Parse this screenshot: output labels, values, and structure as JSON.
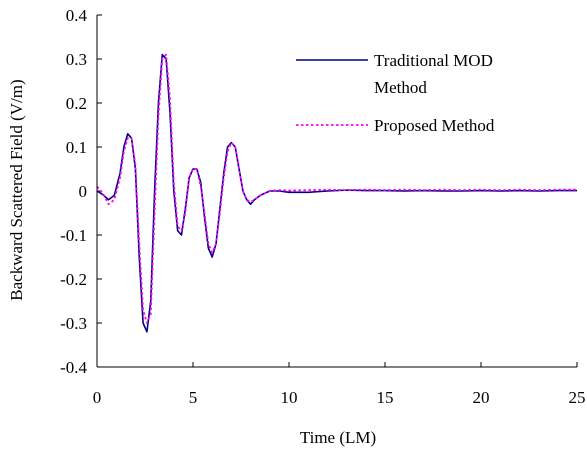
{
  "chart_data": {
    "type": "line",
    "title": "",
    "xlabel": "Time (LM)",
    "ylabel": "Backward Scattered Field (V/m)",
    "xlim": [
      0,
      25
    ],
    "ylim": [
      -0.4,
      0.4
    ],
    "x_ticks": [
      0,
      5,
      10,
      15,
      20,
      25
    ],
    "y_ticks": [
      0.4,
      0.3,
      0.2,
      0.1,
      0,
      -0.1,
      -0.2,
      -0.3,
      -0.4
    ],
    "x_tick_labels": [
      "0",
      "5",
      "10",
      "15",
      "20",
      "25"
    ],
    "y_tick_labels": [
      "0.4",
      "0.3",
      "0.2",
      "0.1",
      "0",
      "-0.1",
      "-0.2",
      "-0.3",
      "-0.4"
    ],
    "grid": false,
    "legend_position": "top-right",
    "legend_entries": [
      {
        "label_lines": [
          "Traditional MOD",
          "Method"
        ]
      },
      {
        "label_lines": [
          "Proposed Method"
        ]
      }
    ],
    "series": [
      {
        "name": "Traditional MOD Method",
        "color": "#000080",
        "style": "solid",
        "x": [
          0,
          0.3,
          0.6,
          0.9,
          1.2,
          1.4,
          1.6,
          1.8,
          2.0,
          2.2,
          2.4,
          2.6,
          2.8,
          3.0,
          3.2,
          3.4,
          3.6,
          3.8,
          4.0,
          4.2,
          4.4,
          4.6,
          4.8,
          5.0,
          5.2,
          5.4,
          5.6,
          5.8,
          6.0,
          6.2,
          6.4,
          6.6,
          6.8,
          7.0,
          7.2,
          7.4,
          7.6,
          7.8,
          8.0,
          8.2,
          8.5,
          9.0,
          9.5,
          10,
          11,
          12,
          13,
          14,
          15,
          16,
          17,
          18,
          19,
          20,
          21,
          22,
          23,
          24,
          25
        ],
        "y": [
          0.0,
          -0.008,
          -0.02,
          -0.01,
          0.04,
          0.1,
          0.13,
          0.12,
          0.05,
          -0.15,
          -0.3,
          -0.32,
          -0.25,
          0.0,
          0.2,
          0.31,
          0.3,
          0.18,
          0.0,
          -0.09,
          -0.1,
          -0.04,
          0.03,
          0.05,
          0.05,
          0.02,
          -0.06,
          -0.13,
          -0.15,
          -0.12,
          -0.04,
          0.04,
          0.1,
          0.11,
          0.1,
          0.05,
          0.0,
          -0.02,
          -0.03,
          -0.02,
          -0.01,
          0.0,
          0.0,
          -0.003,
          -0.003,
          0.0,
          0.002,
          0.001,
          0.001,
          0.0,
          0.001,
          0.0,
          0.0,
          0.001,
          0.0,
          0.001,
          0.0,
          0.001,
          0.001
        ]
      },
      {
        "name": "Proposed Method",
        "color": "#ff00ff",
        "style": "dotted",
        "x": [
          0,
          0.3,
          0.6,
          0.9,
          1.2,
          1.4,
          1.6,
          1.8,
          2.0,
          2.2,
          2.4,
          2.6,
          2.8,
          3.0,
          3.2,
          3.4,
          3.6,
          3.8,
          4.0,
          4.2,
          4.4,
          4.6,
          4.8,
          5.0,
          5.2,
          5.4,
          5.6,
          5.8,
          6.0,
          6.2,
          6.4,
          6.6,
          6.8,
          7.0,
          7.2,
          7.4,
          7.6,
          7.8,
          8.0,
          8.2,
          8.5,
          9.0,
          9.5,
          10,
          11,
          12,
          13,
          14,
          15,
          16,
          17,
          18,
          19,
          20,
          21,
          22,
          23,
          24,
          25
        ],
        "y": [
          0.01,
          -0.005,
          -0.03,
          -0.02,
          0.03,
          0.09,
          0.12,
          0.12,
          0.06,
          -0.12,
          -0.27,
          -0.3,
          -0.28,
          -0.05,
          0.17,
          0.3,
          0.31,
          0.21,
          0.02,
          -0.08,
          -0.09,
          -0.05,
          0.03,
          0.05,
          0.05,
          0.01,
          -0.05,
          -0.12,
          -0.14,
          -0.12,
          -0.05,
          0.03,
          0.09,
          0.11,
          0.1,
          0.05,
          0.0,
          -0.02,
          -0.025,
          -0.02,
          -0.01,
          0.0,
          0.002,
          0.001,
          0.002,
          0.003,
          0.002,
          0.003,
          0.002,
          0.003,
          0.002,
          0.003,
          0.002,
          0.003,
          0.002,
          0.003,
          0.002,
          0.003,
          0.003
        ]
      }
    ]
  }
}
